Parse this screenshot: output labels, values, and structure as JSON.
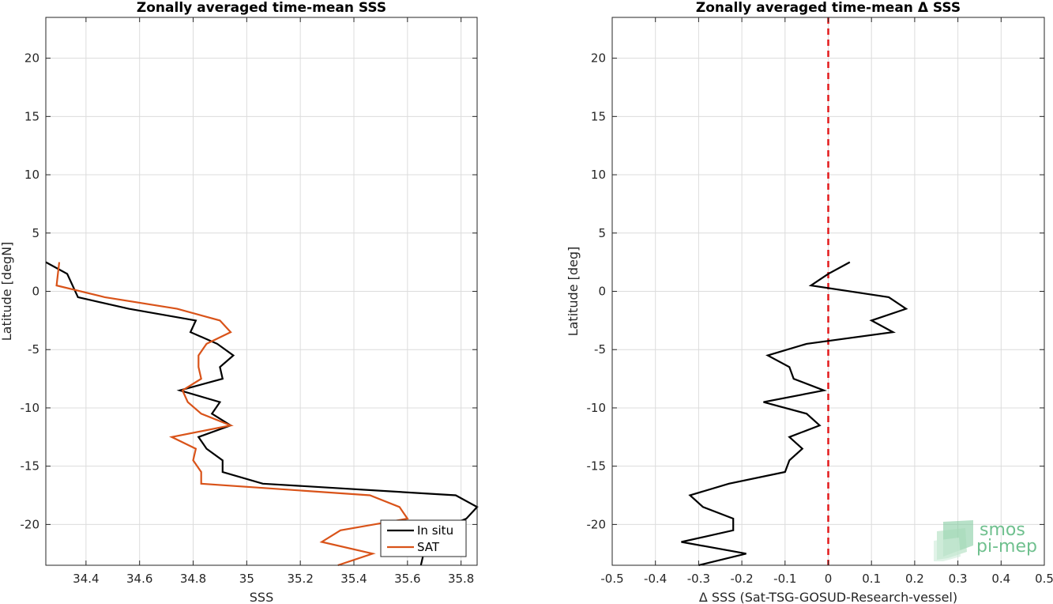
{
  "chart_data": [
    {
      "type": "line",
      "title": "Zonally averaged time-mean SSS",
      "xlabel": "SSS",
      "ylabel": "Latitude [degN]",
      "xlim": [
        34.25,
        35.86
      ],
      "ylim": [
        -23.5,
        23.5
      ],
      "xticks": [
        34.4,
        34.6,
        34.8,
        35.0,
        35.2,
        35.4,
        35.6,
        35.8
      ],
      "xtick_labels": [
        "34.4",
        "34.6",
        "34.8",
        "35",
        "35.2",
        "35.4",
        "35.6",
        "35.8"
      ],
      "yticks": [
        -20,
        -15,
        -10,
        -5,
        0,
        5,
        10,
        15,
        20
      ],
      "ytick_labels": [
        "-20",
        "-15",
        "-10",
        "-5",
        "0",
        "5",
        "10",
        "15",
        "20"
      ],
      "grid": true,
      "legend": "bottom-right",
      "series": [
        {
          "name": "In situ",
          "color": "#000000",
          "points": [
            [
              34.25,
              2.5
            ],
            [
              34.33,
              1.5
            ],
            [
              34.37,
              -0.5
            ],
            [
              34.56,
              -1.5
            ],
            [
              34.81,
              -2.5
            ],
            [
              34.79,
              -3.5
            ],
            [
              34.89,
              -4.5
            ],
            [
              34.95,
              -5.5
            ],
            [
              34.9,
              -6.5
            ],
            [
              34.91,
              -7.5
            ],
            [
              34.75,
              -8.5
            ],
            [
              34.9,
              -9.5
            ],
            [
              34.87,
              -10.5
            ],
            [
              34.94,
              -11.5
            ],
            [
              34.82,
              -12.5
            ],
            [
              34.85,
              -13.5
            ],
            [
              34.91,
              -14.5
            ],
            [
              34.91,
              -15.5
            ],
            [
              35.06,
              -16.5
            ],
            [
              35.78,
              -17.5
            ],
            [
              35.86,
              -18.5
            ],
            [
              35.82,
              -19.5
            ],
            [
              35.71,
              -20.5
            ],
            [
              35.68,
              -21.5
            ],
            [
              35.66,
              -22.5
            ],
            [
              35.65,
              -23.5
            ]
          ]
        },
        {
          "name": "SAT",
          "color": "#d95319",
          "points": [
            [
              34.3,
              2.5
            ],
            [
              34.29,
              0.5
            ],
            [
              34.47,
              -0.5
            ],
            [
              34.74,
              -1.5
            ],
            [
              34.9,
              -2.5
            ],
            [
              34.94,
              -3.5
            ],
            [
              34.85,
              -4.5
            ],
            [
              34.82,
              -5.5
            ],
            [
              34.82,
              -6.5
            ],
            [
              34.83,
              -7.5
            ],
            [
              34.76,
              -8.5
            ],
            [
              34.78,
              -9.5
            ],
            [
              34.83,
              -10.5
            ],
            [
              34.94,
              -11.5
            ],
            [
              34.72,
              -12.5
            ],
            [
              34.81,
              -13.5
            ],
            [
              34.8,
              -14.5
            ],
            [
              34.83,
              -15.5
            ],
            [
              34.83,
              -16.5
            ],
            [
              35.46,
              -17.5
            ],
            [
              35.57,
              -18.5
            ],
            [
              35.6,
              -19.5
            ],
            [
              35.35,
              -20.5
            ],
            [
              35.28,
              -21.5
            ],
            [
              35.47,
              -22.5
            ],
            [
              35.34,
              -23.5
            ]
          ]
        }
      ]
    },
    {
      "type": "line",
      "title": "Zonally averaged time-mean Δ SSS",
      "xlabel": "Δ SSS (Sat-TSG-GOSUD-Research-vessel)",
      "ylabel": "Latitude [deg]",
      "xlim": [
        -0.5,
        0.5
      ],
      "ylim": [
        -23.5,
        23.5
      ],
      "xticks": [
        -0.5,
        -0.4,
        -0.3,
        -0.2,
        -0.1,
        0,
        0.1,
        0.2,
        0.3,
        0.4,
        0.5
      ],
      "xtick_labels": [
        "-0.5",
        "-0.4",
        "-0.3",
        "-0.2",
        "-0.1",
        "0",
        "0.1",
        "0.2",
        "0.3",
        "0.4",
        "0.5"
      ],
      "yticks": [
        -20,
        -15,
        -10,
        -5,
        0,
        5,
        10,
        15,
        20
      ],
      "ytick_labels": [
        "-20",
        "-15",
        "-10",
        "-5",
        "0",
        "5",
        "10",
        "15",
        "20"
      ],
      "grid": true,
      "reference_line": {
        "x": 0,
        "color": "#e31a1c",
        "style": "dashed"
      },
      "series": [
        {
          "color": "#000000",
          "points": [
            [
              0.05,
              2.5
            ],
            [
              0.0,
              1.5
            ],
            [
              -0.04,
              0.5
            ],
            [
              0.14,
              -0.5
            ],
            [
              0.18,
              -1.5
            ],
            [
              0.1,
              -2.5
            ],
            [
              0.15,
              -3.5
            ],
            [
              -0.05,
              -4.5
            ],
            [
              -0.14,
              -5.5
            ],
            [
              -0.09,
              -6.5
            ],
            [
              -0.08,
              -7.5
            ],
            [
              -0.01,
              -8.5
            ],
            [
              -0.15,
              -9.5
            ],
            [
              -0.05,
              -10.5
            ],
            [
              -0.02,
              -11.5
            ],
            [
              -0.09,
              -12.5
            ],
            [
              -0.06,
              -13.5
            ],
            [
              -0.09,
              -14.5
            ],
            [
              -0.1,
              -15.5
            ],
            [
              -0.23,
              -16.5
            ],
            [
              -0.32,
              -17.5
            ],
            [
              -0.29,
              -18.5
            ],
            [
              -0.22,
              -19.5
            ],
            [
              -0.22,
              -20.5
            ],
            [
              -0.34,
              -21.5
            ],
            [
              -0.19,
              -22.5
            ],
            [
              -0.3,
              -23.5
            ]
          ]
        }
      ]
    }
  ],
  "legend": {
    "insitu_label": "In situ",
    "sat_label": "SAT"
  },
  "logo": {
    "line1": "smos",
    "line2": "pi-mep"
  }
}
